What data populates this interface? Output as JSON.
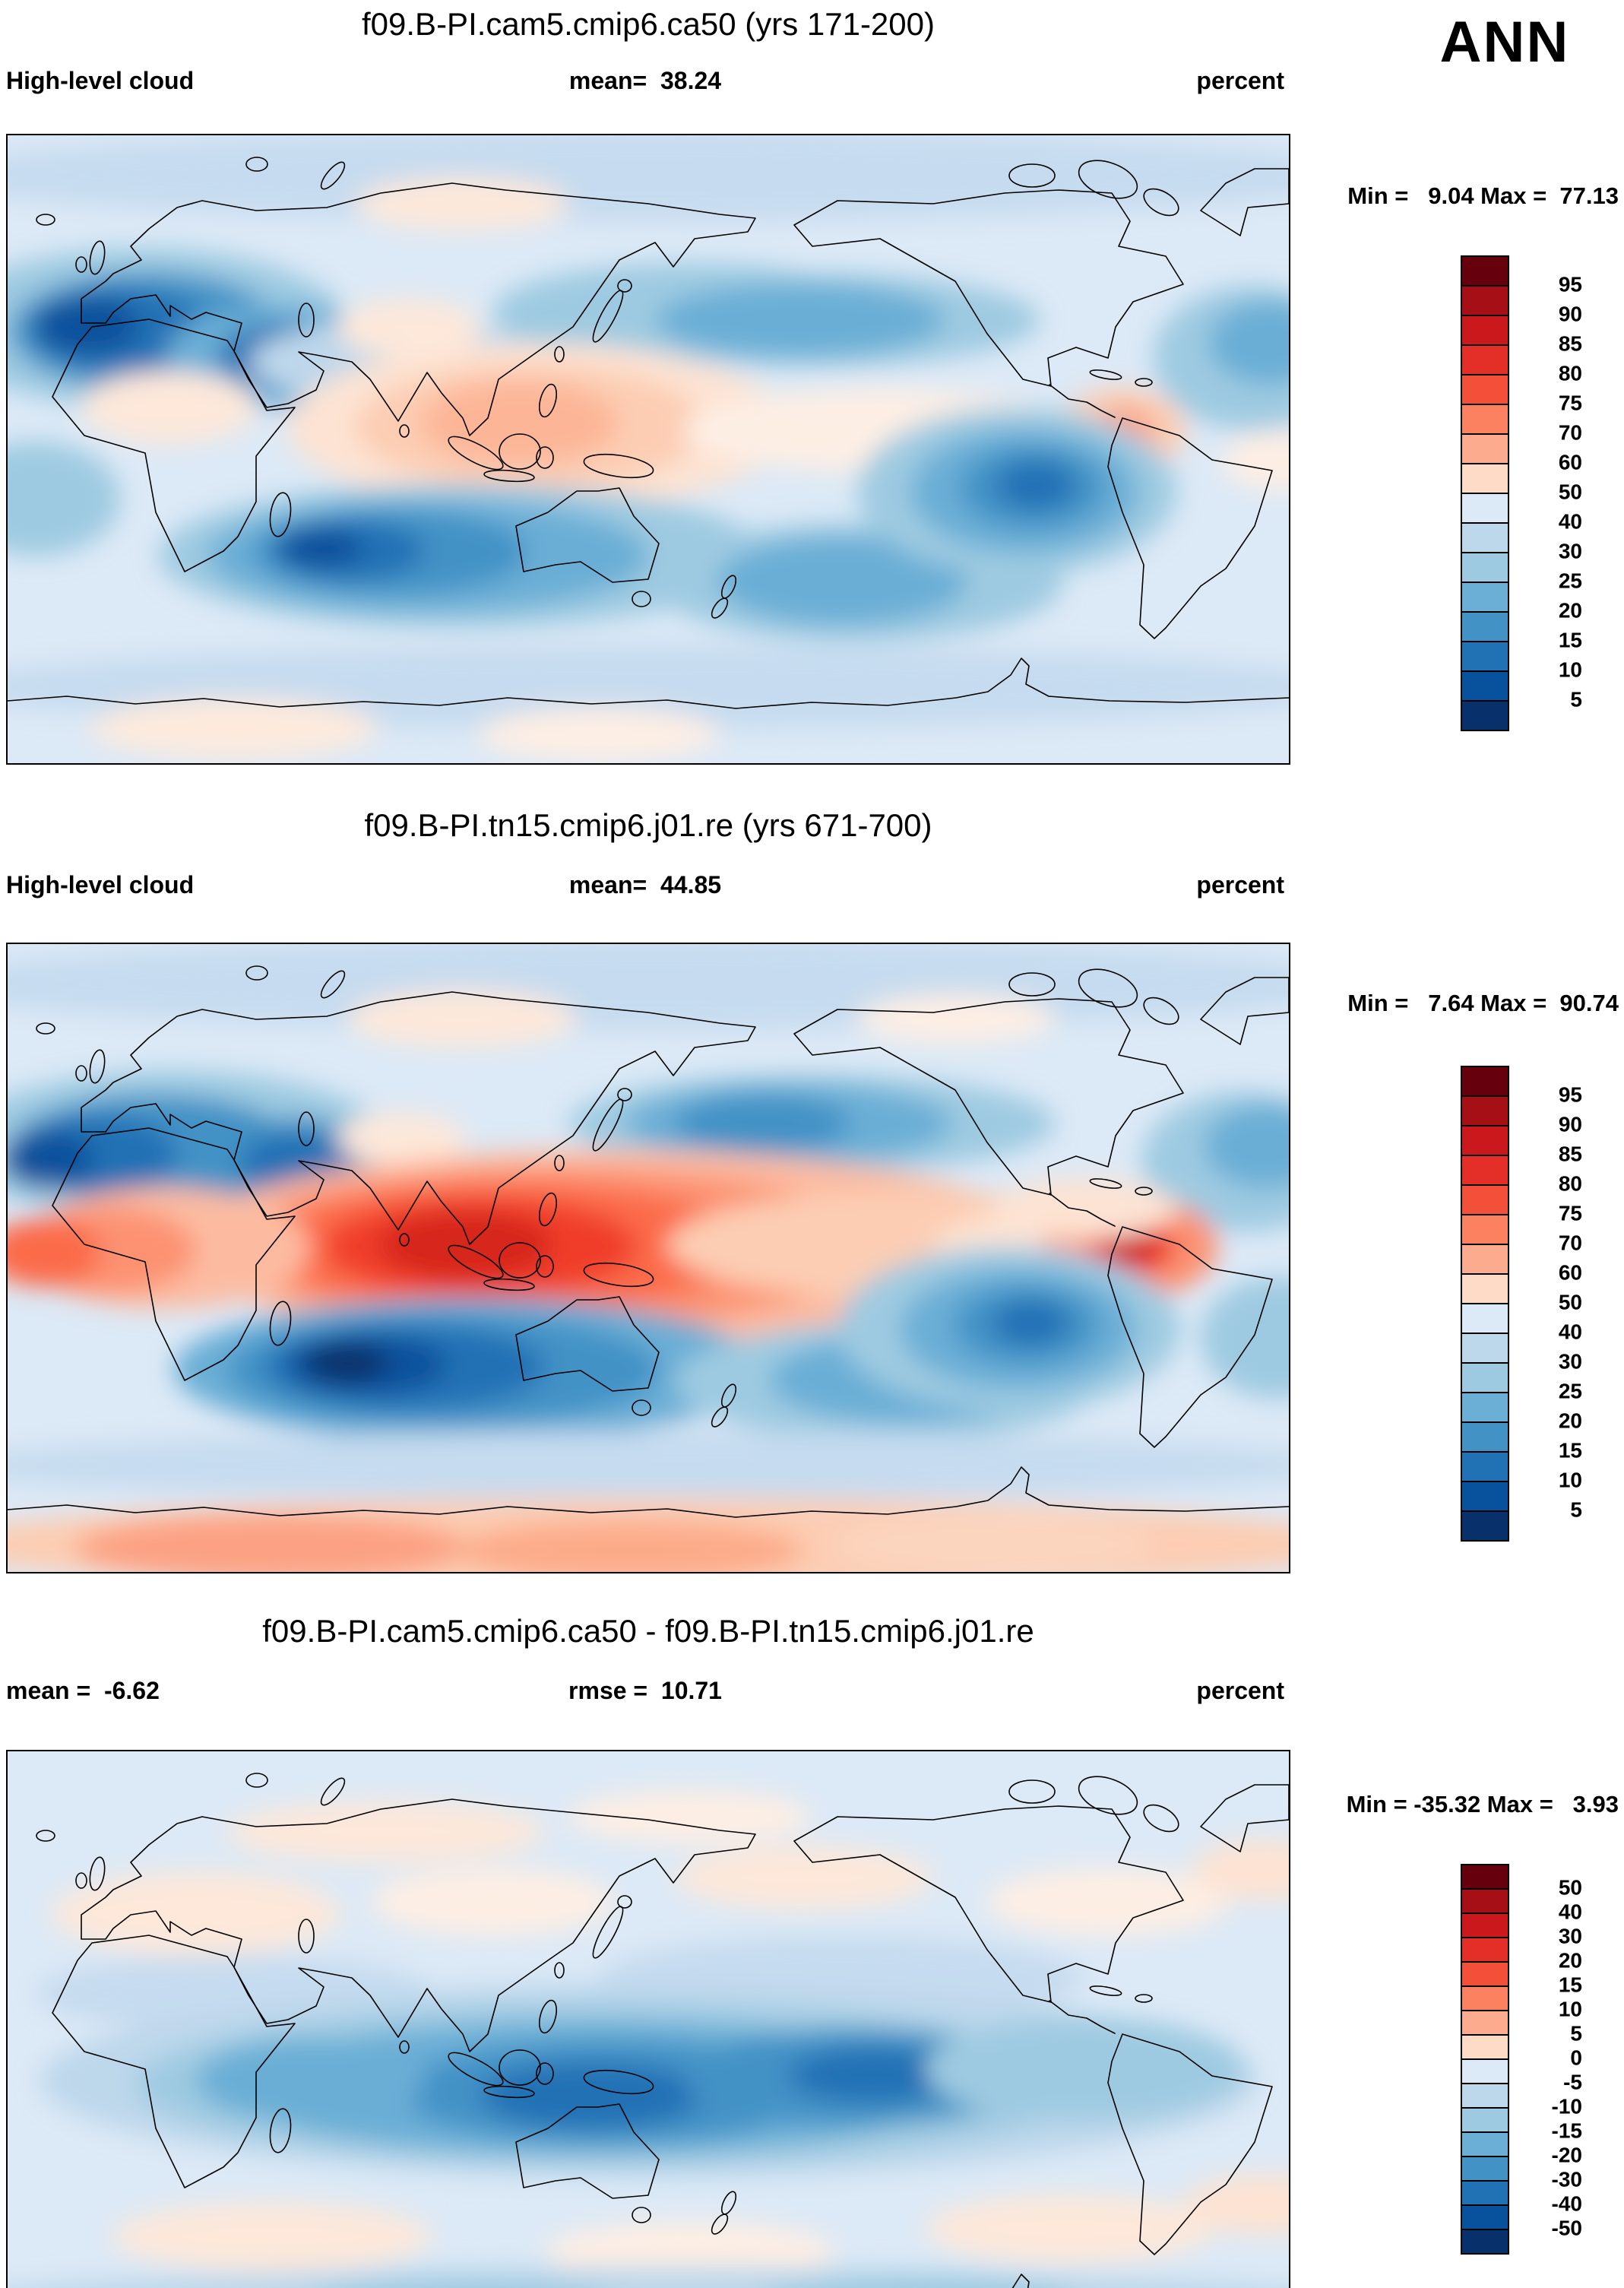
{
  "header": {
    "season": "ANN"
  },
  "chart_data": {
    "type": "heatmap",
    "subtype": "global latitude-longitude filled contour maps (model diagnostics, 3-panel comparison)",
    "variable": "High-level cloud",
    "units": "percent",
    "season": "ANN",
    "panels": [
      {
        "title": "f09.B-PI.cam5.cmip6.ca50 (yrs 171-200)",
        "subtitle_left": "High-level cloud",
        "subtitle_center": "mean=  38.24",
        "subtitle_right": "percent",
        "stats": {
          "mean": 38.24,
          "min": 9.04,
          "max": 77.13
        },
        "minmax_text": "Min =   9.04 Max =  77.13",
        "colorbar": {
          "labels": [
            "95",
            "90",
            "85",
            "80",
            "75",
            "70",
            "60",
            "50",
            "40",
            "30",
            "25",
            "20",
            "15",
            "10",
            "5"
          ],
          "colors": [
            "#67000d",
            "#a50f15",
            "#cb181d",
            "#e32f27",
            "#f44f39",
            "#fc8161",
            "#fcab8f",
            "#fddbc7",
            "#dce9f6",
            "#bdd7eb",
            "#9ecae1",
            "#6baed6",
            "#4292c6",
            "#2171b5",
            "#08519c",
            "#08306b"
          ]
        },
        "field": {
          "background": "#dce9f6",
          "blobs": [
            [
              845,
              55,
              950,
              60,
              "#c6dbef"
            ],
            [
              600,
              92,
              140,
              35,
              "#fde8da"
            ],
            [
              180,
              255,
              270,
              105,
              "#9ecae1"
            ],
            [
              185,
              260,
              180,
              78,
              "#4292c6"
            ],
            [
              150,
              258,
              115,
              55,
              "#2171b5"
            ],
            [
              105,
              252,
              70,
              38,
              "#08519c"
            ],
            [
              360,
              293,
              150,
              68,
              "#6baed6"
            ],
            [
              368,
              293,
              88,
              44,
              "#2171b5"
            ],
            [
              520,
              300,
              200,
              55,
              "#bdd7eb"
            ],
            [
              900,
              235,
              260,
              65,
              "#9ecae1"
            ],
            [
              1060,
              245,
              300,
              62,
              "#9ecae1"
            ],
            [
              1045,
              245,
              190,
              48,
              "#6baed6"
            ],
            [
              1640,
              295,
              130,
              95,
              "#9ecae1"
            ],
            [
              1662,
              275,
              80,
              55,
              "#6baed6"
            ],
            [
              700,
              385,
              330,
              110,
              "#fde3d3"
            ],
            [
              690,
              385,
              230,
              82,
              "#fccdb3"
            ],
            [
              675,
              380,
              130,
              55,
              "#fcb597"
            ],
            [
              1150,
              390,
              260,
              55,
              "#fdeee4"
            ],
            [
              1468,
              390,
              85,
              55,
              "#fccdb3"
            ],
            [
              1470,
              390,
              42,
              30,
              "#fca183"
            ],
            [
              530,
              255,
              95,
              38,
              "#fde8da"
            ],
            [
              215,
              360,
              115,
              48,
              "#fde8da"
            ],
            [
              600,
              555,
              400,
              95,
              "#9ecae1"
            ],
            [
              555,
              555,
              290,
              75,
              "#6baed6"
            ],
            [
              505,
              550,
              180,
              56,
              "#4292c6"
            ],
            [
              450,
              548,
              100,
              40,
              "#2171b5"
            ],
            [
              415,
              545,
              55,
              26,
              "#08519c"
            ],
            [
              1120,
              590,
              270,
              78,
              "#9ecae1"
            ],
            [
              1100,
              588,
              165,
              58,
              "#6baed6"
            ],
            [
              1330,
              470,
              210,
              110,
              "#9ecae1"
            ],
            [
              1340,
              470,
              150,
              82,
              "#6baed6"
            ],
            [
              1350,
              465,
              95,
              55,
              "#4292c6"
            ],
            [
              1355,
              462,
              52,
              32,
              "#2171b5"
            ],
            [
              40,
              480,
              110,
              75,
              "#9ecae1"
            ],
            [
              845,
              728,
              920,
              55,
              "#c6dbef"
            ],
            [
              300,
              782,
              190,
              40,
              "#fdeadd"
            ],
            [
              780,
              790,
              160,
              35,
              "#fdeee4"
            ],
            [
              1680,
              430,
              80,
              40,
              "#fdeee4"
            ]
          ]
        }
      },
      {
        "title": "f09.B-PI.tn15.cmip6.j01.re (yrs 671-700)",
        "subtitle_left": "High-level cloud",
        "subtitle_center": "mean=  44.85",
        "subtitle_right": "percent",
        "stats": {
          "mean": 44.85,
          "min": 7.64,
          "max": 90.74
        },
        "minmax_text": "Min =   7.64 Max =  90.74",
        "colorbar": {
          "labels": [
            "95",
            "90",
            "85",
            "80",
            "75",
            "70",
            "60",
            "50",
            "40",
            "30",
            "25",
            "20",
            "15",
            "10",
            "5"
          ],
          "colors": [
            "#67000d",
            "#a50f15",
            "#cb181d",
            "#e32f27",
            "#f44f39",
            "#fc8161",
            "#fcab8f",
            "#fddbc7",
            "#dce9f6",
            "#bdd7eb",
            "#9ecae1",
            "#6baed6",
            "#4292c6",
            "#2171b5",
            "#08519c",
            "#08306b"
          ]
        },
        "field": {
          "background": "#dce9f6",
          "blobs": [
            [
              845,
              55,
              950,
              60,
              "#c6dbef"
            ],
            [
              600,
              100,
              150,
              38,
              "#fde8da"
            ],
            [
              1250,
              100,
              130,
              32,
              "#fdeee4"
            ],
            [
              220,
              268,
              290,
              100,
              "#9ecae1"
            ],
            [
              195,
              272,
              190,
              72,
              "#4292c6"
            ],
            [
              120,
              278,
              105,
              50,
              "#2171b5"
            ],
            [
              55,
              285,
              60,
              38,
              "#08519c"
            ],
            [
              372,
              290,
              135,
              60,
              "#4292c6"
            ],
            [
              380,
              290,
              72,
              40,
              "#2171b5"
            ],
            [
              1060,
              238,
              320,
              65,
              "#9ecae1"
            ],
            [
              1030,
              238,
              215,
              52,
              "#6baed6"
            ],
            [
              995,
              238,
              115,
              38,
              "#4292c6"
            ],
            [
              1630,
              288,
              135,
              92,
              "#9ecae1"
            ],
            [
              1658,
              268,
              82,
              55,
              "#6baed6"
            ],
            [
              520,
              258,
              85,
              34,
              "#fde8da"
            ],
            [
              800,
              400,
              580,
              128,
              "#fcbba1"
            ],
            [
              720,
              400,
              440,
              104,
              "#fc9272"
            ],
            [
              660,
              400,
              320,
              84,
              "#fb6a4a"
            ],
            [
              625,
              400,
              205,
              64,
              "#f03d2a"
            ],
            [
              605,
              398,
              115,
              46,
              "#d7261e"
            ],
            [
              1200,
              398,
              330,
              72,
              "#fccdb3"
            ],
            [
              1400,
              400,
              180,
              50,
              "#fde3d3"
            ],
            [
              210,
              402,
              190,
              80,
              "#fcbba1"
            ],
            [
              130,
              405,
              120,
              58,
              "#fc9272"
            ],
            [
              50,
              408,
              75,
              45,
              "#fb6a4a"
            ],
            [
              1480,
              400,
              115,
              68,
              "#fc9272"
            ],
            [
              1480,
              398,
              58,
              40,
              "#f03d2a"
            ],
            [
              1478,
              396,
              34,
              26,
              "#cb181d"
            ],
            [
              1420,
              350,
              120,
              40,
              "#fde3d3"
            ],
            [
              610,
              562,
              390,
              95,
              "#6baed6"
            ],
            [
              575,
              562,
              285,
              74,
              "#4292c6"
            ],
            [
              525,
              558,
              185,
              56,
              "#2171b5"
            ],
            [
              475,
              555,
              105,
              40,
              "#08519c"
            ],
            [
              448,
              553,
              55,
              26,
              "#08306b"
            ],
            [
              1160,
              578,
              280,
              78,
              "#9ecae1"
            ],
            [
              1185,
              575,
              180,
              58,
              "#6baed6"
            ],
            [
              1320,
              508,
              225,
              108,
              "#9ecae1"
            ],
            [
              1332,
              508,
              155,
              80,
              "#6baed6"
            ],
            [
              1342,
              503,
              95,
              52,
              "#4292c6"
            ],
            [
              1348,
              500,
              50,
              30,
              "#2171b5"
            ],
            [
              1672,
              520,
              100,
              80,
              "#9ecae1"
            ],
            [
              845,
              688,
              920,
              45,
              "#c6dbef"
            ],
            [
              845,
              792,
              950,
              62,
              "#fccdb3"
            ],
            [
              350,
              796,
              260,
              44,
              "#fca183"
            ],
            [
              820,
              800,
              230,
              40,
              "#fcab89"
            ],
            [
              1300,
              792,
              210,
              40,
              "#fcd5bf"
            ]
          ]
        }
      },
      {
        "title": "f09.B-PI.cam5.cmip6.ca50 - f09.B-PI.tn15.cmip6.j01.re",
        "subtitle_left": "mean =  -6.62",
        "subtitle_center": "rmse =  10.71",
        "subtitle_right": "percent",
        "stats": {
          "mean": -6.62,
          "rmse": 10.71,
          "min": -35.32,
          "max": 3.93
        },
        "minmax_text": "Min = -35.32 Max =   3.93",
        "colorbar": {
          "labels": [
            "50",
            "40",
            "30",
            "20",
            "15",
            "10",
            "5",
            "0",
            "-5",
            "-10",
            "-15",
            "-20",
            "-30",
            "-40",
            "-50"
          ],
          "colors": [
            "#67000d",
            "#a50f15",
            "#cb181d",
            "#e32f27",
            "#f44f39",
            "#fc8161",
            "#fcab8f",
            "#fddbc7",
            "#dce9f6",
            "#bdd7eb",
            "#9ecae1",
            "#6baed6",
            "#4292c6",
            "#2171b5",
            "#08519c",
            "#08306b"
          ]
        },
        "field": {
          "background": "#dce9f6",
          "blobs": [
            [
              250,
              215,
              190,
              55,
              "#fde8da"
            ],
            [
              640,
              200,
              160,
              45,
              "#fdeee4"
            ],
            [
              1050,
              168,
              170,
              42,
              "#fde8da"
            ],
            [
              1450,
              200,
              160,
              45,
              "#fdeee4"
            ],
            [
              1655,
              158,
              95,
              40,
              "#fde3d3"
            ],
            [
              500,
              108,
              210,
              40,
              "#fde8da"
            ],
            [
              900,
              88,
              160,
              35,
              "#fdeee4"
            ],
            [
              1100,
              300,
              320,
              55,
              "#c6dbef"
            ],
            [
              300,
              320,
              260,
              50,
              "#c6dbef"
            ],
            [
              845,
              435,
              800,
              128,
              "#bdd7eb"
            ],
            [
              800,
              440,
              630,
              106,
              "#9ecae1"
            ],
            [
              770,
              445,
              480,
              88,
              "#6baed6"
            ],
            [
              790,
              450,
              270,
              68,
              "#4292c6"
            ],
            [
              770,
              455,
              145,
              44,
              "#2171b5"
            ],
            [
              1120,
              430,
              230,
              64,
              "#4292c6"
            ],
            [
              1140,
              428,
              110,
              36,
              "#2171b5"
            ],
            [
              400,
              435,
              150,
              55,
              "#6baed6"
            ],
            [
              1420,
              420,
              210,
              68,
              "#9ecae1"
            ],
            [
              350,
              640,
              210,
              45,
              "#fde8da"
            ],
            [
              900,
              660,
              190,
              40,
              "#fdeee4"
            ],
            [
              1400,
              630,
              190,
              45,
              "#fde8da"
            ],
            [
              1655,
              598,
              105,
              40,
              "#fde3d3"
            ],
            [
              845,
              728,
              920,
              48,
              "#bdd7eb"
            ],
            [
              600,
              732,
              210,
              35,
              "#9ecae1"
            ],
            [
              1200,
              728,
              210,
              35,
              "#9ecae1"
            ],
            [
              845,
              805,
              920,
              30,
              "#e8f1f9"
            ]
          ]
        }
      }
    ]
  }
}
